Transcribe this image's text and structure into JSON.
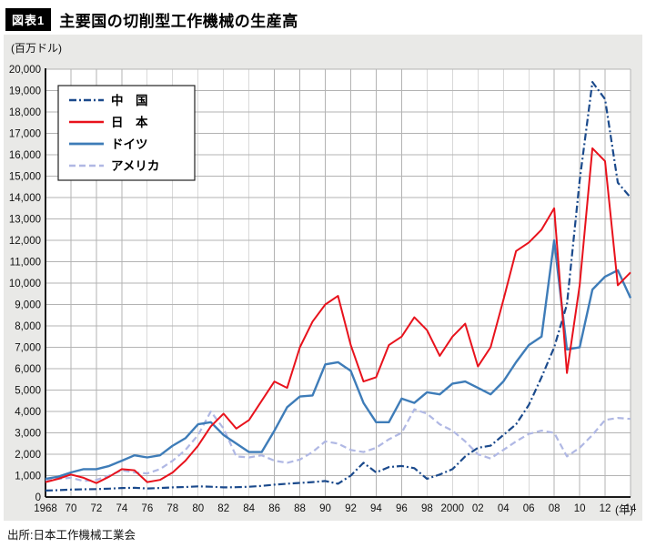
{
  "header": {
    "tag": "図表1",
    "title": "主要国の切削型工作機械の生産高"
  },
  "footer": {
    "source": "出所:日本工作機械工業会"
  },
  "chart_data": {
    "type": "line",
    "title": "主要国の切削型工作機械の生産高",
    "unit_label": "(百万ドル)",
    "year_label": "(年)",
    "xlabel": "",
    "ylabel": "百万ドル",
    "grid": true,
    "legend_position": "top-left",
    "x_start": 1968,
    "x_end": 2014,
    "x_tick_step": 2,
    "x_tick_labels": [
      "1968",
      "70",
      "72",
      "74",
      "76",
      "78",
      "80",
      "82",
      "84",
      "86",
      "88",
      "90",
      "92",
      "94",
      "96",
      "98",
      "2000",
      "02",
      "04",
      "06",
      "08",
      "10",
      "12",
      "14"
    ],
    "ylim": [
      0,
      20000
    ],
    "y_tick_step": 1000,
    "colors": {
      "panel_bg": "#e9e9e7",
      "plot_bg": "#ffffff",
      "grid": "#b3b3b3",
      "axis": "#1a1a1a"
    },
    "series": [
      {
        "name": "中　国",
        "key": "china",
        "color": "#1b4a8c",
        "dash": "8 3 2 3",
        "width": 2.2,
        "values": [
          300,
          320,
          350,
          360,
          370,
          390,
          420,
          430,
          400,
          420,
          450,
          470,
          500,
          480,
          450,
          460,
          480,
          520,
          580,
          620,
          660,
          700,
          750,
          620,
          1000,
          1600,
          1150,
          1400,
          1450,
          1350,
          850,
          1050,
          1300,
          1900,
          2300,
          2400,
          2900,
          3400,
          4300,
          5600,
          7000,
          9000,
          14800,
          19400,
          18600,
          14700,
          14000
        ]
      },
      {
        "name": "日　本",
        "key": "japan",
        "color": "#e8121c",
        "dash": "",
        "width": 2,
        "values": [
          700,
          850,
          1050,
          900,
          650,
          950,
          1300,
          1250,
          700,
          800,
          1150,
          1700,
          2400,
          3300,
          3900,
          3200,
          3600,
          4500,
          5400,
          5100,
          7000,
          8200,
          9000,
          9400,
          7100,
          5400,
          5600,
          7100,
          7500,
          8400,
          7800,
          6600,
          7500,
          8100,
          6100,
          7000,
          9200,
          11500,
          11900,
          12500,
          13500,
          5800,
          9900,
          16300,
          15700,
          9900,
          10500
        ]
      },
      {
        "name": "ドイツ",
        "key": "germany",
        "color": "#3e7cb8",
        "dash": "",
        "width": 2.4,
        "values": [
          850,
          950,
          1150,
          1300,
          1300,
          1450,
          1700,
          1950,
          1850,
          1950,
          2400,
          2750,
          3400,
          3500,
          2900,
          2500,
          2100,
          2100,
          3100,
          4200,
          4700,
          4750,
          6200,
          6300,
          5900,
          4400,
          3500,
          3500,
          4600,
          4400,
          4900,
          4800,
          5300,
          5400,
          5100,
          4800,
          5400,
          6300,
          7100,
          7500,
          12000,
          6900,
          7000,
          9700,
          10300,
          10600,
          9300
        ]
      },
      {
        "name": "アメリカ",
        "key": "usa",
        "color": "#b0b8e4",
        "dash": "7 4",
        "width": 2.2,
        "values": [
          800,
          850,
          900,
          750,
          800,
          1000,
          1250,
          1150,
          1100,
          1300,
          1700,
          2200,
          2900,
          4000,
          3200,
          1900,
          1850,
          1950,
          1700,
          1600,
          1750,
          2100,
          2600,
          2500,
          2200,
          2100,
          2300,
          2700,
          3000,
          4100,
          3900,
          3400,
          3100,
          2600,
          2000,
          1800,
          2200,
          2600,
          2950,
          3100,
          3000,
          1900,
          2300,
          2900,
          3600,
          3700,
          3650
        ]
      }
    ]
  }
}
